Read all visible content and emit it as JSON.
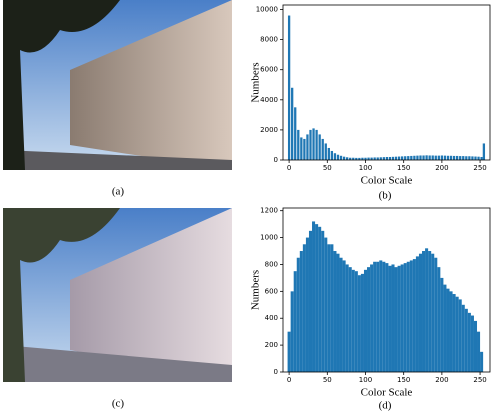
{
  "captions": [
    "(a)",
    "(b)",
    "(c)",
    "(d)"
  ],
  "chart_data": [
    {
      "type": "bar",
      "xlabel": "Color Scale",
      "ylabel": "Numbers",
      "color": "#1f77b4",
      "x": [
        0,
        4,
        8,
        12,
        16,
        20,
        24,
        28,
        32,
        36,
        40,
        44,
        48,
        52,
        56,
        60,
        64,
        68,
        72,
        76,
        80,
        84,
        88,
        92,
        96,
        100,
        104,
        108,
        112,
        116,
        120,
        124,
        128,
        132,
        136,
        140,
        144,
        148,
        152,
        156,
        160,
        164,
        168,
        172,
        176,
        180,
        184,
        188,
        192,
        196,
        200,
        204,
        208,
        212,
        216,
        220,
        224,
        228,
        232,
        236,
        240,
        244,
        248,
        252,
        255
      ],
      "values": [
        9600,
        4800,
        3500,
        2000,
        1500,
        1400,
        1700,
        2000,
        2100,
        2000,
        1700,
        1400,
        1100,
        800,
        600,
        450,
        350,
        280,
        220,
        180,
        150,
        150,
        140,
        140,
        150,
        150,
        160,
        160,
        170,
        170,
        180,
        190,
        200,
        200,
        210,
        220,
        230,
        240,
        250,
        260,
        270,
        280,
        290,
        300,
        300,
        310,
        300,
        300,
        290,
        290,
        300,
        290,
        280,
        280,
        270,
        270,
        260,
        260,
        250,
        250,
        240,
        230,
        220,
        200,
        1100
      ],
      "xlim": [
        -8,
        263
      ],
      "xticks": [
        0,
        50,
        100,
        150,
        200,
        250
      ],
      "ylim": [
        0,
        10300
      ],
      "yticks": [
        0,
        2000,
        4000,
        6000,
        8000,
        10000
      ]
    },
    {
      "type": "bar",
      "xlabel": "Color Scale",
      "ylabel": "Numbers",
      "color": "#1f77b4",
      "x": [
        0,
        4,
        8,
        12,
        16,
        20,
        24,
        28,
        32,
        36,
        40,
        44,
        48,
        52,
        56,
        60,
        64,
        68,
        72,
        76,
        80,
        84,
        88,
        92,
        96,
        100,
        104,
        108,
        112,
        116,
        120,
        124,
        128,
        132,
        136,
        140,
        144,
        148,
        152,
        156,
        160,
        164,
        168,
        172,
        176,
        180,
        184,
        188,
        192,
        196,
        200,
        204,
        208,
        212,
        216,
        220,
        224,
        228,
        232,
        236,
        240,
        244,
        248,
        252
      ],
      "values": [
        300,
        600,
        750,
        850,
        900,
        950,
        1000,
        1050,
        1120,
        1100,
        1080,
        1050,
        1000,
        950,
        950,
        900,
        880,
        850,
        830,
        800,
        780,
        760,
        750,
        720,
        730,
        760,
        780,
        800,
        820,
        820,
        830,
        820,
        810,
        790,
        800,
        780,
        790,
        800,
        810,
        820,
        830,
        840,
        860,
        880,
        900,
        920,
        900,
        880,
        850,
        780,
        700,
        650,
        620,
        600,
        580,
        560,
        540,
        500,
        470,
        440,
        420,
        380,
        300,
        150
      ],
      "xlim": [
        -8,
        263
      ],
      "xticks": [
        0,
        50,
        100,
        150,
        200,
        250
      ],
      "ylim": [
        0,
        1220
      ],
      "yticks": [
        0,
        200,
        400,
        600,
        800,
        1000,
        1200
      ]
    }
  ]
}
